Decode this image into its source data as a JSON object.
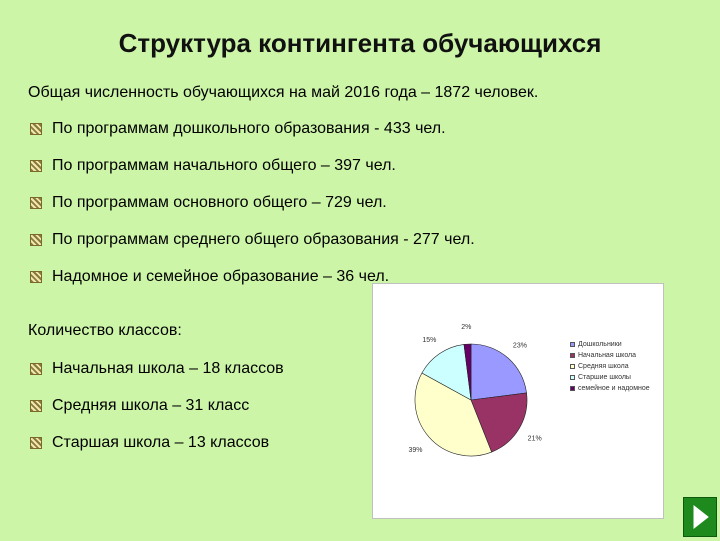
{
  "slide": {
    "title": "Структура контингента обучающихся",
    "intro": "Общая численность обучающихся на май 2016 года – 1872 человек.",
    "bullets": [
      "По программам дошкольного образования - 433  чел.",
      "По программам начального общего – 397 чел.",
      "По программам основного общего – 729 чел.",
      "По программам среднего общего образования  - 277 чел.",
      "Надомное и семейное образование – 36 чел."
    ],
    "classes_title": "Количество классов:",
    "classes": [
      "Начальная школа – 18 классов",
      "Средняя школа – 31 класс",
      "Старшая школа – 13 классов"
    ]
  },
  "chart_data": {
    "type": "pie",
    "categories": [
      "Дошкольники",
      "Начальная школа",
      "Средняя школа",
      "Старшие школы",
      "семейное и надомное"
    ],
    "values": [
      23,
      21,
      39,
      15,
      2
    ],
    "labels": [
      "23%",
      "21%",
      "39%",
      "15%",
      "2%"
    ],
    "colors": [
      "#9999ff",
      "#993366",
      "#ffffcc",
      "#ccffff",
      "#660066"
    ],
    "legend_position": "right"
  },
  "icons": {
    "bullet": "bullet-square-icon",
    "next": "next-arrow-icon"
  }
}
